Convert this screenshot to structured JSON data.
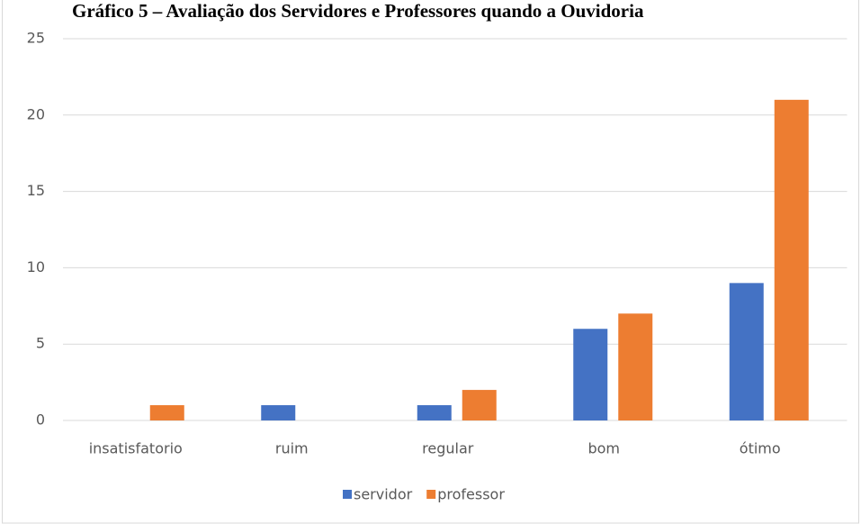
{
  "chart_data": {
    "type": "bar",
    "title": "Gráfico 5 – Avaliação dos Servidores e Professores quando a Ouvidoria",
    "categories": [
      "insatisfatorio",
      "ruim",
      "regular",
      "bom",
      "ótimo"
    ],
    "series": [
      {
        "name": "servidor",
        "color": "#4472c4",
        "values": [
          0,
          1,
          1,
          6,
          9
        ]
      },
      {
        "name": "professor",
        "color": "#ed7d31",
        "values": [
          1,
          0,
          2,
          7,
          21
        ]
      }
    ],
    "ylim": [
      0,
      25
    ],
    "yticks": [
      0,
      5,
      10,
      15,
      20,
      25
    ],
    "grid": true,
    "legend": "bottom"
  }
}
